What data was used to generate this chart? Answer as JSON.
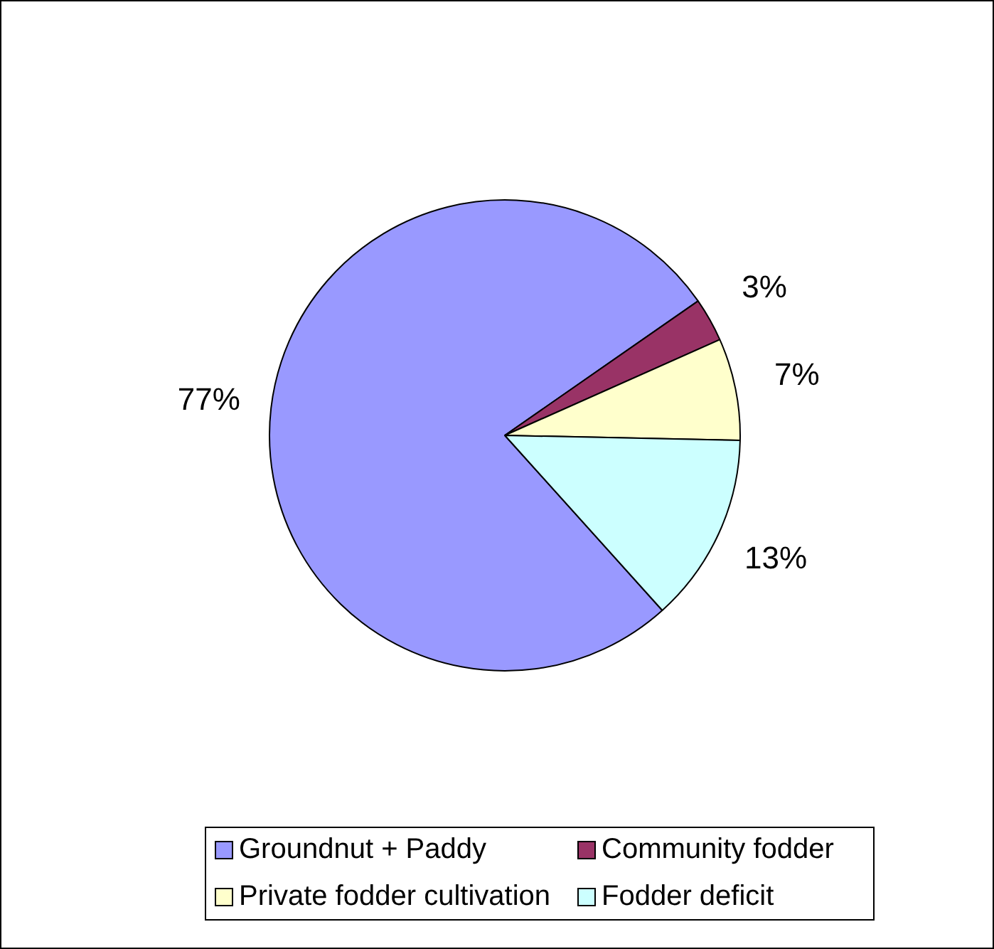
{
  "chart_data": {
    "type": "pie",
    "categories": [
      "Groundnut + Paddy",
      "Community fodder",
      "Private fodder cultivation",
      "Fodder deficit"
    ],
    "values": [
      77,
      3,
      7,
      13
    ],
    "colors": [
      "#9999ff",
      "#993366",
      "#ffffcc",
      "#ccffff"
    ],
    "value_labels": [
      "77%",
      "3%",
      "7%",
      "13%"
    ],
    "legend": "bottom"
  }
}
